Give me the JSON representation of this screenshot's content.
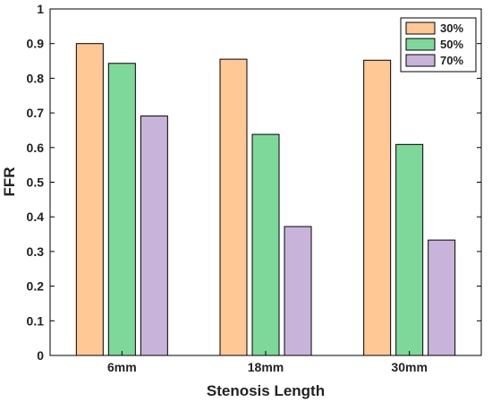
{
  "chart_data": {
    "type": "bar",
    "title": "",
    "xlabel": "Stenosis Length",
    "ylabel": "FFR",
    "categories": [
      "6mm",
      "18mm",
      "30mm"
    ],
    "series": [
      {
        "name": "30%",
        "color": "#FFC895",
        "values": [
          0.9,
          0.855,
          0.852
        ]
      },
      {
        "name": "50%",
        "color": "#7ED89A",
        "values": [
          0.843,
          0.638,
          0.609
        ]
      },
      {
        "name": "70%",
        "color": "#C8B4DA",
        "values": [
          0.691,
          0.372,
          0.333
        ]
      }
    ],
    "ylim": [
      0,
      1
    ],
    "yticks": [
      "0",
      "0.1",
      "0.2",
      "0.3",
      "0.4",
      "0.5",
      "0.6",
      "0.7",
      "0.8",
      "0.9",
      "1"
    ],
    "grid": false,
    "legend_position": "top-right"
  }
}
